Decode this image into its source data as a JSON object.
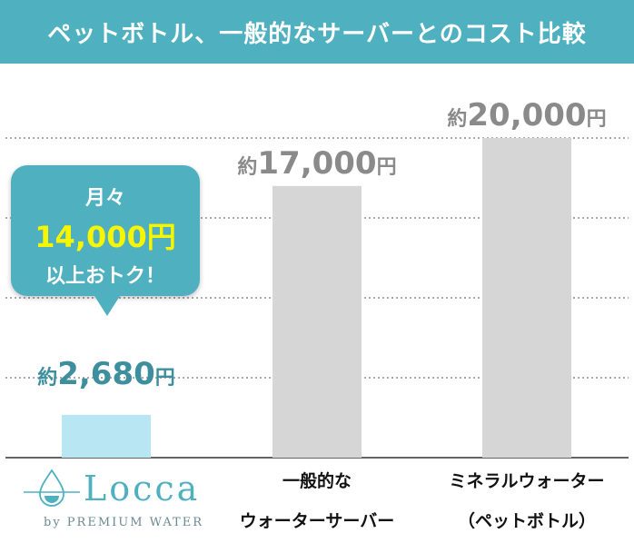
{
  "header": {
    "title": "ペットボトル、一般的なサーバーとのコスト比較"
  },
  "colors": {
    "accent": "#4fb0c0",
    "locca_bar": "#b8e7f3",
    "other_bar": "#d6d6d6",
    "highlight_text": "#f7f500"
  },
  "callout": {
    "line1": "月々",
    "line2": "14,000円",
    "line3": "以上おトク！"
  },
  "logo": {
    "name": "Locca",
    "tagline": "by PREMIUM WATER"
  },
  "chart_data": {
    "type": "bar",
    "title": "ペットボトル、一般的なサーバーとのコスト比較",
    "categories": [
      "Locca",
      "一般的なウォーターサーバー",
      "ミネラルウォーター（ペットボトル）"
    ],
    "category_label_lines": [
      [],
      [
        "一般的な",
        "ウォーターサーバー"
      ],
      [
        "ミネラルウォーター",
        "（ペットボトル）"
      ]
    ],
    "values": [
      2680,
      17000,
      20000
    ],
    "value_labels": [
      {
        "prefix": "約",
        "number": "2,680",
        "suffix": "円"
      },
      {
        "prefix": "約",
        "number": "17,000",
        "suffix": "円"
      },
      {
        "prefix": "約",
        "number": "20,000",
        "suffix": "円"
      }
    ],
    "ylim": [
      0,
      20000
    ],
    "grid": true,
    "legend": "none"
  }
}
